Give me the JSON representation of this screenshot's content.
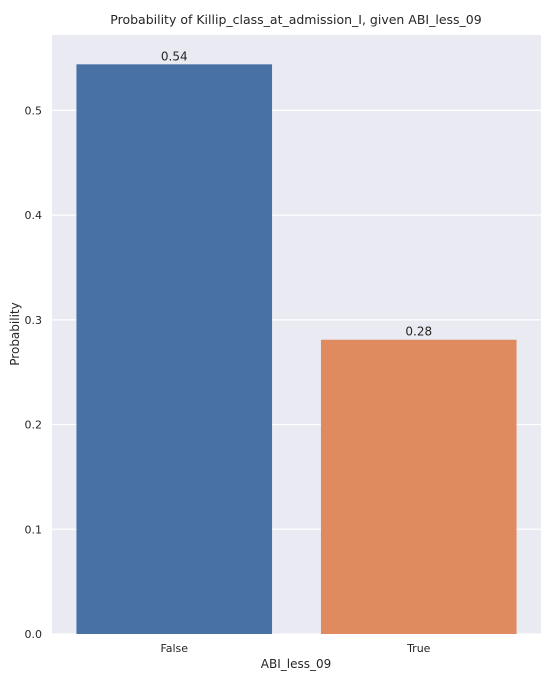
{
  "chart_data": {
    "type": "bar",
    "title": "Probability of Killip_class_at_admission_I, given ABI_less_09",
    "xlabel": "ABI_less_09",
    "ylabel": "Probability",
    "categories": [
      "False",
      "True"
    ],
    "values": [
      0.544,
      0.281
    ],
    "data_labels": [
      "0.54",
      "0.28"
    ],
    "ylim": [
      0,
      0.572
    ],
    "yticks": [
      0.0,
      0.1,
      0.2,
      0.3,
      0.4,
      0.5
    ],
    "ytick_labels": [
      "0.0",
      "0.1",
      "0.2",
      "0.3",
      "0.4",
      "0.5"
    ],
    "grid": true,
    "colors": [
      "#4872a6",
      "#e08a5f"
    ],
    "background": "#eaeaf2"
  }
}
